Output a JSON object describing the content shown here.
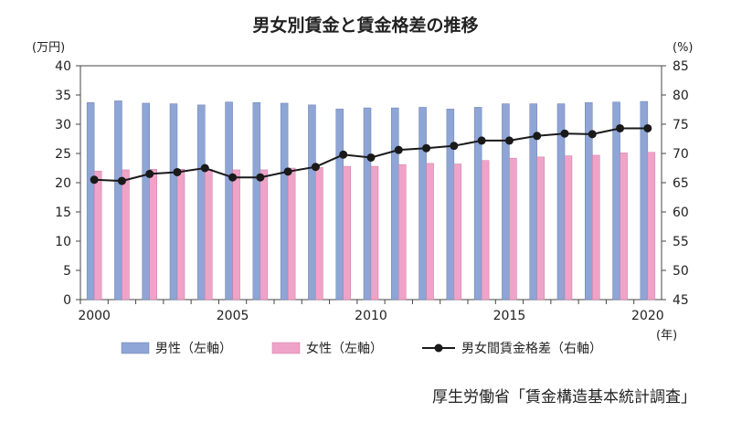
{
  "chart_data": {
    "type": "bar",
    "title": "男女別賃金と賃金格差の推移",
    "left_unit": "(万円)",
    "right_unit": "(%)",
    "x_unit": "(年)",
    "source": "厚生労働省「賃金構造基本統計調査」",
    "years": [
      2000,
      2001,
      2002,
      2003,
      2004,
      2005,
      2006,
      2007,
      2008,
      2009,
      2010,
      2011,
      2012,
      2013,
      2014,
      2015,
      2016,
      2017,
      2018,
      2019,
      2020
    ],
    "x_tick_labels": [
      "2000",
      "2005",
      "2010",
      "2015",
      "2020"
    ],
    "x_tick_years": [
      2000,
      2005,
      2010,
      2015,
      2020
    ],
    "y_left": {
      "min": 0,
      "max": 40,
      "step": 5
    },
    "y_right": {
      "min": 45,
      "max": 85,
      "step": 5
    },
    "grid": false,
    "legend_position": "bottom",
    "series": [
      {
        "name": "男性（左軸）",
        "kind": "bar",
        "axis": "left",
        "color": "#8ea5d6",
        "values": [
          33.7,
          34.0,
          33.6,
          33.5,
          33.3,
          33.8,
          33.7,
          33.6,
          33.3,
          32.6,
          32.8,
          32.8,
          32.9,
          32.6,
          32.9,
          33.5,
          33.5,
          33.5,
          33.7,
          33.8,
          33.9
        ]
      },
      {
        "name": "女性（左軸）",
        "kind": "bar",
        "axis": "left",
        "color": "#f0a3c8",
        "values": [
          22.0,
          22.2,
          22.3,
          22.3,
          22.3,
          22.2,
          22.2,
          22.5,
          22.6,
          22.8,
          22.8,
          23.1,
          23.3,
          23.2,
          23.8,
          24.2,
          24.4,
          24.6,
          24.7,
          25.1,
          25.2
        ]
      },
      {
        "name": "男女間賃金格差（右軸）",
        "kind": "line",
        "axis": "right",
        "color": "#1a1a1a",
        "values": [
          65.5,
          65.3,
          66.5,
          66.8,
          67.5,
          65.9,
          65.9,
          66.9,
          67.7,
          69.8,
          69.3,
          70.6,
          70.9,
          71.3,
          72.2,
          72.2,
          73.0,
          73.4,
          73.3,
          74.3,
          74.3
        ]
      }
    ]
  }
}
